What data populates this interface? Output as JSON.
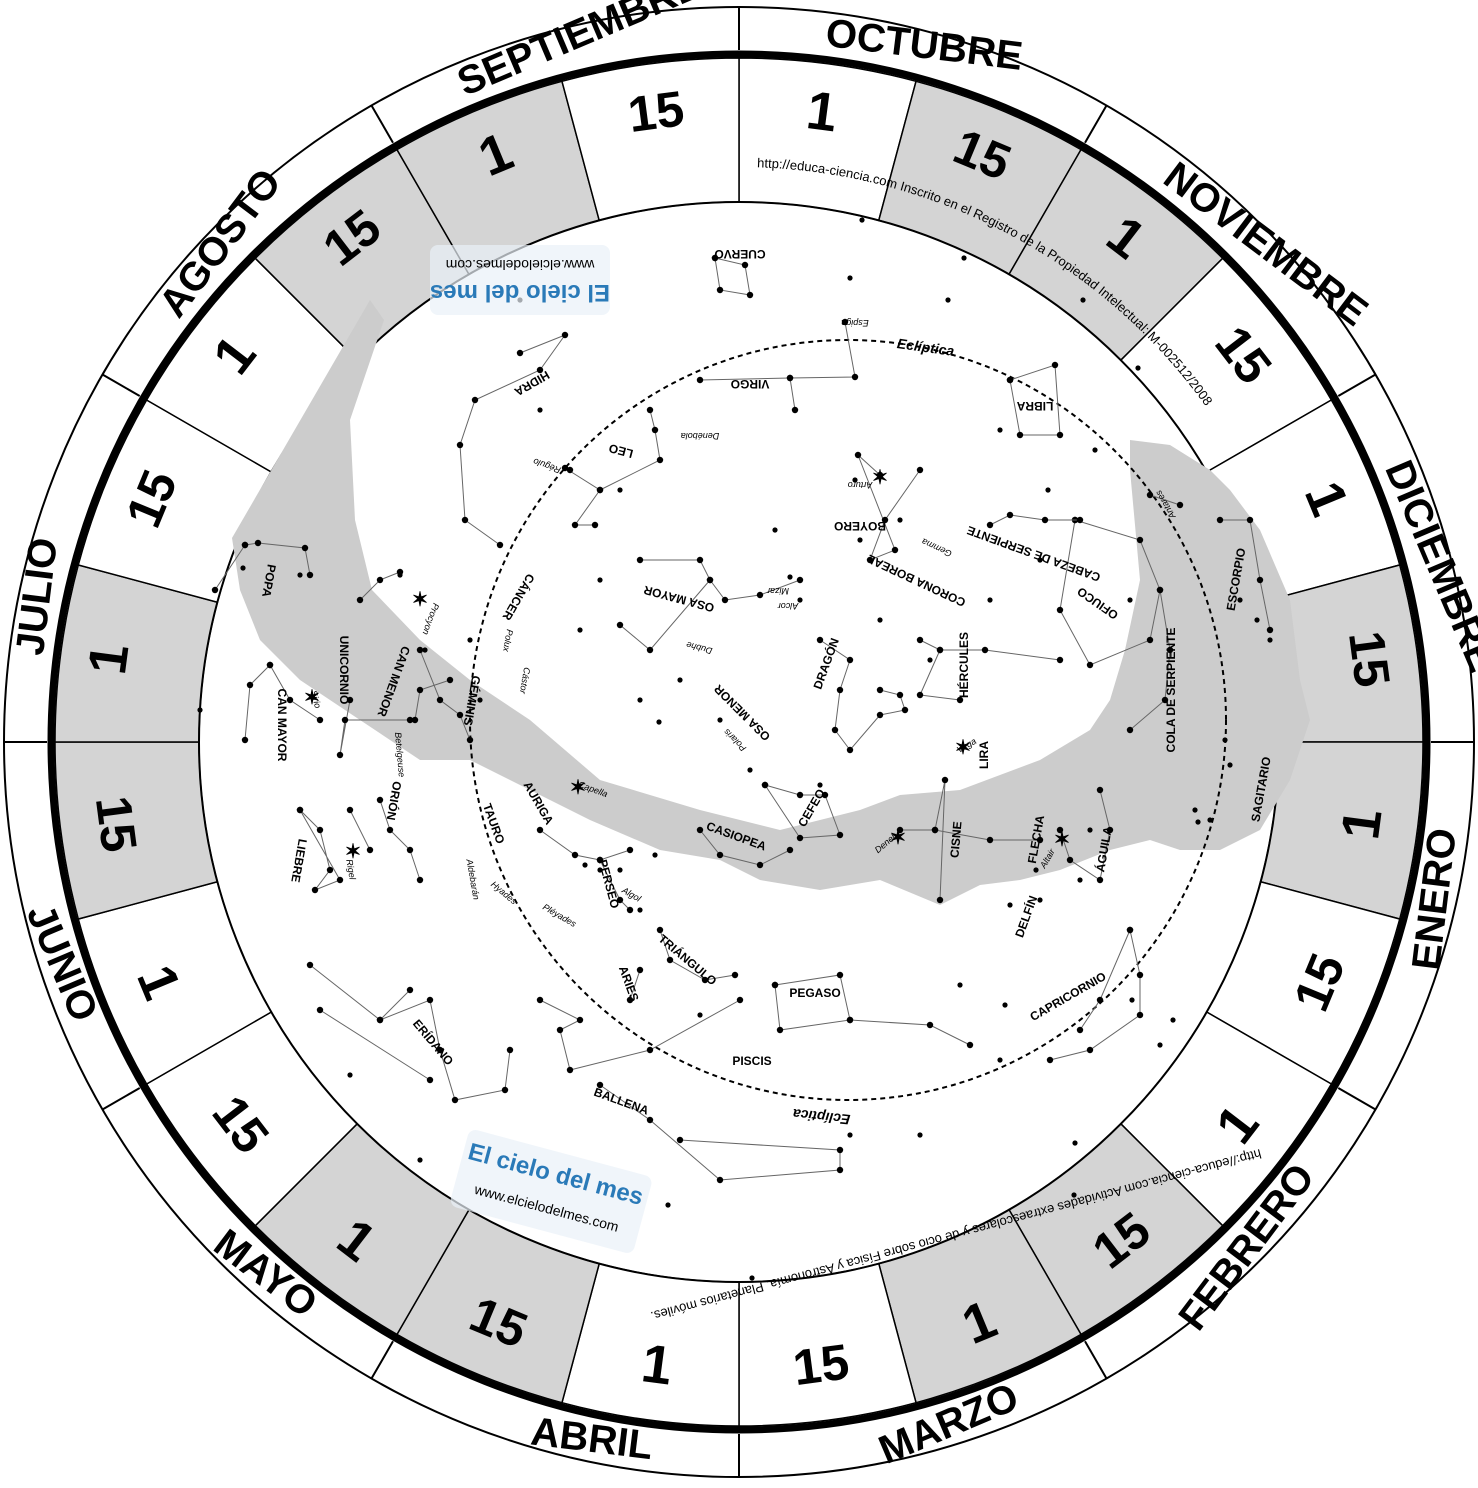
{
  "months": [
    {
      "id": "octubre",
      "label": "OCTUBRE"
    },
    {
      "id": "noviembre",
      "label": "NOVIEMBRE"
    },
    {
      "id": "diciembre",
      "label": "DICIEMBRE"
    },
    {
      "id": "enero",
      "label": "ENERO"
    },
    {
      "id": "febrero",
      "label": "FEBRERO"
    },
    {
      "id": "marzo",
      "label": "MARZO"
    },
    {
      "id": "abril",
      "label": "ABRIL"
    },
    {
      "id": "mayo",
      "label": "MAYO"
    },
    {
      "id": "junio",
      "label": "JUNIO"
    },
    {
      "id": "julio",
      "label": "JULIO"
    },
    {
      "id": "agosto",
      "label": "AGOSTO"
    },
    {
      "id": "septiembre",
      "label": "SEPTIEMBRE"
    }
  ],
  "day_marks": [
    "1",
    "15"
  ],
  "band_colors": {
    "shaded": "#d4d4d4",
    "clear": "#ffffff",
    "milky_way": "#cccccc",
    "lines": "#666666",
    "ink": "#000000"
  },
  "constellations": [
    {
      "id": "cuervo",
      "label": "CUERVO"
    },
    {
      "id": "hidra",
      "label": "HIDRA"
    },
    {
      "id": "virgo",
      "label": "VIRGO"
    },
    {
      "id": "libra",
      "label": "LIBRA"
    },
    {
      "id": "leo",
      "label": "LEO"
    },
    {
      "id": "boyero",
      "label": "BOYERO"
    },
    {
      "id": "cabeza-serpiente",
      "label": "CABEZA DE SERPIENTE"
    },
    {
      "id": "corona-boreal",
      "label": "CORONA BOREAL"
    },
    {
      "id": "cancer",
      "label": "CÁNCER"
    },
    {
      "id": "osa-mayor",
      "label": "OSA MAYOR"
    },
    {
      "id": "ofiuco",
      "label": "OFIUCO"
    },
    {
      "id": "escorpio",
      "label": "ESCORPIO"
    },
    {
      "id": "popa",
      "label": "POPA"
    },
    {
      "id": "unicornio",
      "label": "UNICORNIO"
    },
    {
      "id": "can-menor",
      "label": "CAN MENOR"
    },
    {
      "id": "geminis",
      "label": "GÉMINIS"
    },
    {
      "id": "draco",
      "label": "DRAGÓN"
    },
    {
      "id": "hercules",
      "label": "HÉRCULES"
    },
    {
      "id": "cola-serpiente",
      "label": "COLA DE SERPIENTE"
    },
    {
      "id": "can-mayor",
      "label": "CAN MAYOR"
    },
    {
      "id": "osa-menor",
      "label": "OSA MENOR"
    },
    {
      "id": "lira",
      "label": "LIRA"
    },
    {
      "id": "sagitario",
      "label": "SAGITARIO"
    },
    {
      "id": "orion",
      "label": "ORIÓN"
    },
    {
      "id": "auriga",
      "label": "AURIGA"
    },
    {
      "id": "tauro",
      "label": "TAURO"
    },
    {
      "id": "cefeo",
      "label": "CEFEO"
    },
    {
      "id": "casiopea",
      "label": "CASIOPEA"
    },
    {
      "id": "cisne",
      "label": "CISNE"
    },
    {
      "id": "flecha",
      "label": "FLECHA"
    },
    {
      "id": "aguila",
      "label": "ÁGUILA"
    },
    {
      "id": "liebre",
      "label": "LIEBRE"
    },
    {
      "id": "perseo",
      "label": "PERSEO"
    },
    {
      "id": "delfin",
      "label": "DELFÍN"
    },
    {
      "id": "triangulo",
      "label": "TRIÁNGULO"
    },
    {
      "id": "aries",
      "label": "ARIES"
    },
    {
      "id": "pegaso",
      "label": "PEGASO"
    },
    {
      "id": "capricornio",
      "label": "CAPRICORNIO"
    },
    {
      "id": "eridano",
      "label": "ERÍDANO"
    },
    {
      "id": "piscis",
      "label": "PISCIS"
    },
    {
      "id": "ballena",
      "label": "BALLENA"
    }
  ],
  "stars": [
    {
      "id": "espiga",
      "label": "Espiga"
    },
    {
      "id": "denebola",
      "label": "Denébola"
    },
    {
      "id": "regulo",
      "label": "Régulo"
    },
    {
      "id": "arturo",
      "label": "Arturo"
    },
    {
      "id": "gemma",
      "label": "Gemma"
    },
    {
      "id": "antares",
      "label": "Antares"
    },
    {
      "id": "mizar",
      "label": "Mizar"
    },
    {
      "id": "alcor",
      "label": "Alcor"
    },
    {
      "id": "dubhe",
      "label": "Dubhe"
    },
    {
      "id": "procyon",
      "label": "Procyon"
    },
    {
      "id": "polux",
      "label": "Polux"
    },
    {
      "id": "castor",
      "label": "Cástor"
    },
    {
      "id": "sirio",
      "label": "Sirio"
    },
    {
      "id": "polaris",
      "label": "Polaris"
    },
    {
      "id": "vega",
      "label": "Vega"
    },
    {
      "id": "betelgeuse",
      "label": "Betelgeuse"
    },
    {
      "id": "capella",
      "label": "Capella"
    },
    {
      "id": "rigel",
      "label": "Rigel"
    },
    {
      "id": "deneb",
      "label": "Deneb"
    },
    {
      "id": "altair",
      "label": "Altair"
    },
    {
      "id": "aldebaran",
      "label": "Aldebarán"
    },
    {
      "id": "hyades",
      "label": "Hyades"
    },
    {
      "id": "algol",
      "label": "Algol"
    },
    {
      "id": "pleyades",
      "label": "Pléyades"
    }
  ],
  "ecliptic_label": "Eclíptica",
  "info_top": "http://educa-ciencia.com Inscrito en el Registro de la Propiedad Intelectual: M-002512/2008",
  "info_bottom": "http://educa-ciencia.com Actividades extraescolares y de ocio sobre Física y Astronomía. Planetarios móviles.",
  "logo": {
    "title": "El cielo del mes",
    "url": "www.elcielodelmes.com"
  }
}
